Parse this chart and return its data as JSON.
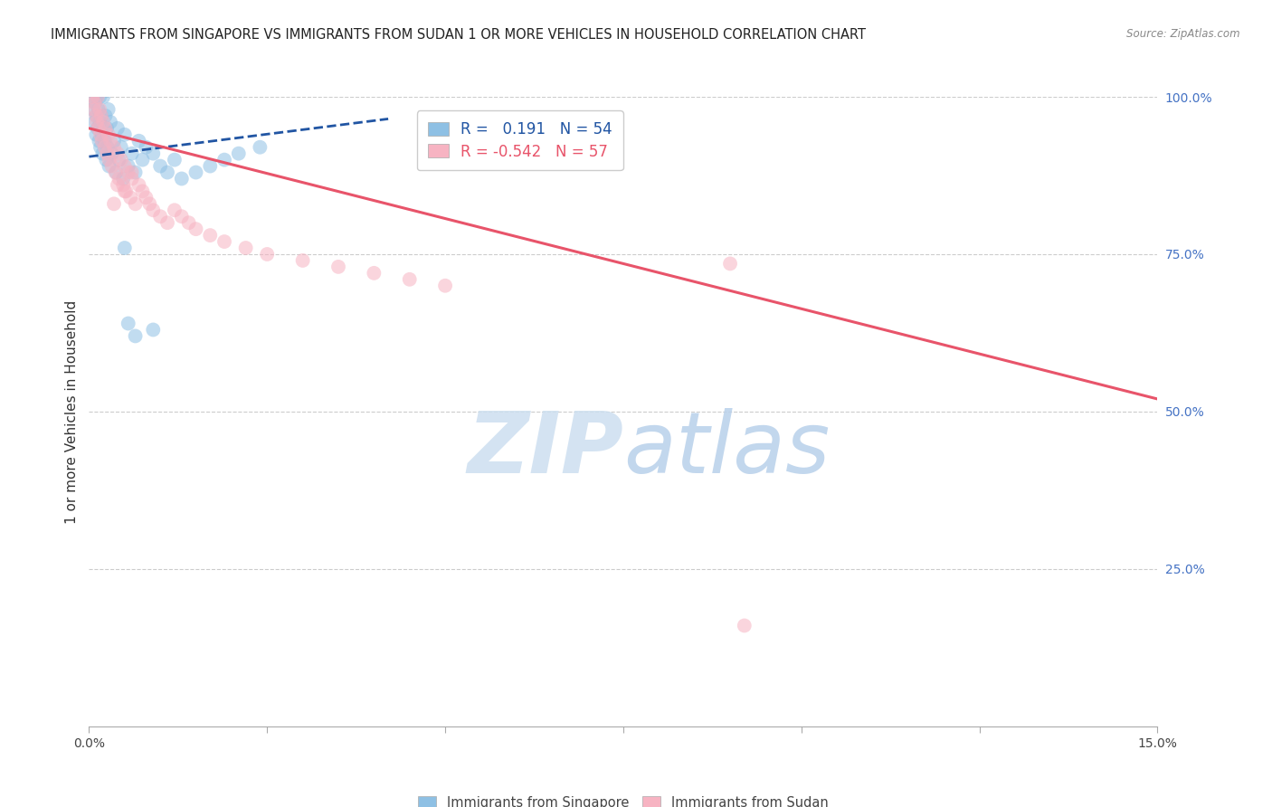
{
  "title": "IMMIGRANTS FROM SINGAPORE VS IMMIGRANTS FROM SUDAN 1 OR MORE VEHICLES IN HOUSEHOLD CORRELATION CHART",
  "source": "Source: ZipAtlas.com",
  "ylabel": "1 or more Vehicles in Household",
  "xlim": [
    0.0,
    15.0
  ],
  "ylim": [
    0.0,
    100.0
  ],
  "legend_singapore": "Immigrants from Singapore",
  "legend_sudan": "Immigrants from Sudan",
  "R_singapore": 0.191,
  "N_singapore": 54,
  "R_sudan": -0.542,
  "N_sudan": 57,
  "color_singapore": "#8ec0e4",
  "color_sudan": "#f7b3c2",
  "trendline_singapore_color": "#2155a3",
  "trendline_sudan_color": "#e8546a",
  "sg_trendline_x": [
    0.0,
    4.2
  ],
  "sg_trendline_y": [
    90.5,
    96.5
  ],
  "sd_trendline_x": [
    0.0,
    15.0
  ],
  "sd_trendline_y": [
    95.0,
    52.0
  ],
  "watermark_zip": "ZIP",
  "watermark_atlas": "atlas",
  "watermark_color": "#d4e5f7",
  "sg_x": [
    0.05,
    0.07,
    0.08,
    0.09,
    0.1,
    0.1,
    0.11,
    0.12,
    0.13,
    0.14,
    0.15,
    0.15,
    0.16,
    0.17,
    0.18,
    0.19,
    0.2,
    0.2,
    0.22,
    0.23,
    0.24,
    0.25,
    0.26,
    0.27,
    0.28,
    0.3,
    0.32,
    0.35,
    0.38,
    0.4,
    0.42,
    0.45,
    0.48,
    0.5,
    0.55,
    0.6,
    0.65,
    0.7,
    0.75,
    0.8,
    0.9,
    1.0,
    1.1,
    1.2,
    1.3,
    1.5,
    1.7,
    1.9,
    2.1,
    2.4,
    0.5,
    0.55,
    0.65,
    0.9
  ],
  "sg_y": [
    98.0,
    100.0,
    96.0,
    99.0,
    97.0,
    94.0,
    100.0,
    95.0,
    98.0,
    93.0,
    100.0,
    96.0,
    92.0,
    97.0,
    94.0,
    91.0,
    100.0,
    95.0,
    93.0,
    97.0,
    90.0,
    95.0,
    92.0,
    98.0,
    89.0,
    96.0,
    91.0,
    93.0,
    88.0,
    95.0,
    90.0,
    92.0,
    87.0,
    94.0,
    89.0,
    91.0,
    88.0,
    93.0,
    90.0,
    92.0,
    91.0,
    89.0,
    88.0,
    90.0,
    87.0,
    88.0,
    89.0,
    90.0,
    91.0,
    92.0,
    76.0,
    64.0,
    62.0,
    63.0
  ],
  "sd_x": [
    0.05,
    0.07,
    0.08,
    0.1,
    0.11,
    0.12,
    0.13,
    0.15,
    0.16,
    0.17,
    0.18,
    0.2,
    0.22,
    0.23,
    0.25,
    0.27,
    0.28,
    0.3,
    0.32,
    0.35,
    0.37,
    0.4,
    0.42,
    0.45,
    0.48,
    0.5,
    0.52,
    0.55,
    0.58,
    0.6,
    0.65,
    0.7,
    0.75,
    0.8,
    0.85,
    0.9,
    1.0,
    1.1,
    1.2,
    1.3,
    1.4,
    1.5,
    1.7,
    1.9,
    2.2,
    2.5,
    3.0,
    3.5,
    4.0,
    4.5,
    5.0,
    0.35,
    0.4,
    0.5,
    0.6,
    9.0,
    9.2
  ],
  "sd_y": [
    100.0,
    98.0,
    99.0,
    97.0,
    96.0,
    100.0,
    95.0,
    98.0,
    94.0,
    97.0,
    93.0,
    96.0,
    92.0,
    95.0,
    91.0,
    94.0,
    90.0,
    93.0,
    89.0,
    92.0,
    88.0,
    91.0,
    87.0,
    90.0,
    86.0,
    89.0,
    85.0,
    88.0,
    84.0,
    87.0,
    83.0,
    86.0,
    85.0,
    84.0,
    83.0,
    82.0,
    81.0,
    80.0,
    82.0,
    81.0,
    80.0,
    79.0,
    78.0,
    77.0,
    76.0,
    75.0,
    74.0,
    73.0,
    72.0,
    71.0,
    70.0,
    83.0,
    86.0,
    85.0,
    88.0,
    73.5,
    16.0
  ]
}
